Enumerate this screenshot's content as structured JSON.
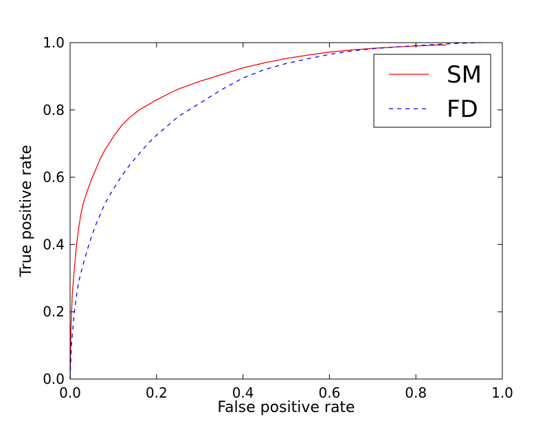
{
  "chart_data": {
    "type": "line",
    "title": "",
    "xlabel": "False positive rate",
    "ylabel": "True positive rate",
    "xlim": [
      0.0,
      1.0
    ],
    "ylim": [
      0.0,
      1.0
    ],
    "xticks": [
      "0.0",
      "0.2",
      "0.4",
      "0.6",
      "0.8",
      "1.0"
    ],
    "yticks": [
      "0.0",
      "0.2",
      "0.4",
      "0.6",
      "0.8",
      "1.0"
    ],
    "grid": false,
    "legend_position": "top-right",
    "series": [
      {
        "name": "SM",
        "color": "#ff0000",
        "style": "solid",
        "x": [
          0.0,
          0.002,
          0.005,
          0.01,
          0.015,
          0.02,
          0.025,
          0.03,
          0.04,
          0.05,
          0.06,
          0.07,
          0.08,
          0.09,
          0.1,
          0.12,
          0.14,
          0.16,
          0.18,
          0.2,
          0.22,
          0.25,
          0.3,
          0.35,
          0.4,
          0.45,
          0.5,
          0.55,
          0.6,
          0.65,
          0.7,
          0.75,
          0.8,
          0.85,
          0.87
        ],
        "y": [
          0.0,
          0.15,
          0.25,
          0.33,
          0.4,
          0.45,
          0.49,
          0.52,
          0.56,
          0.595,
          0.625,
          0.655,
          0.68,
          0.7,
          0.72,
          0.755,
          0.78,
          0.8,
          0.815,
          0.83,
          0.843,
          0.862,
          0.885,
          0.905,
          0.925,
          0.94,
          0.953,
          0.963,
          0.972,
          0.978,
          0.983,
          0.987,
          0.99,
          0.993,
          0.993
        ]
      },
      {
        "name": "FD",
        "color": "#0000ff",
        "style": "dashed",
        "x": [
          0.0,
          0.003,
          0.007,
          0.01,
          0.015,
          0.02,
          0.03,
          0.04,
          0.05,
          0.06,
          0.07,
          0.08,
          0.1,
          0.12,
          0.14,
          0.16,
          0.18,
          0.2,
          0.25,
          0.3,
          0.35,
          0.4,
          0.45,
          0.5,
          0.55,
          0.6,
          0.65,
          0.7,
          0.75,
          0.8,
          0.85,
          0.9,
          0.95
        ],
        "y": [
          0.0,
          0.1,
          0.16,
          0.2,
          0.25,
          0.29,
          0.34,
          0.385,
          0.425,
          0.46,
          0.49,
          0.52,
          0.565,
          0.605,
          0.64,
          0.67,
          0.7,
          0.725,
          0.78,
          0.82,
          0.86,
          0.895,
          0.92,
          0.938,
          0.952,
          0.965,
          0.975,
          0.982,
          0.987,
          0.991,
          0.995,
          0.998,
          1.0
        ]
      }
    ]
  }
}
